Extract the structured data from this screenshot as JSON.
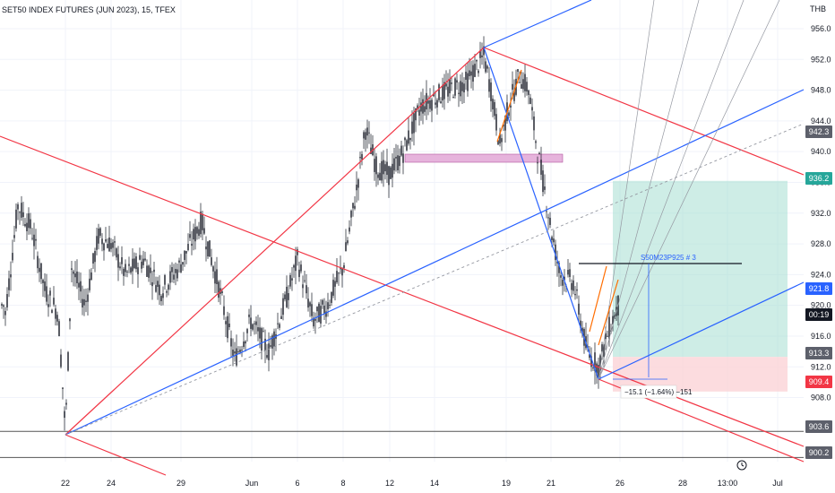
{
  "window": {
    "title": "SET50 INDEX FUTURES (JUN 2023), 15, TFEX",
    "currency": "THB",
    "price_label": "S50M23P925 # 3",
    "measure_label": "−15.1 (−1.64%) −151",
    "clock_icon": "clock-icon"
  },
  "colors": {
    "red_line": "#f23645",
    "blue_line": "#2962ff",
    "gray_line": "#9598a1",
    "orange_line": "#ff6d00",
    "candle": "#131722",
    "target_zone": "#a6dfd2",
    "stop_zone": "#fbd3d7",
    "highlight_box": "#e6b3dc",
    "level_line": "#555555",
    "axis_bg": "#ffffff",
    "tag_gray": "#5d606b",
    "tag_red": "#f23645",
    "tag_black": "#131722",
    "tag_teal": "#26a69a"
  },
  "chart_data": {
    "type": "line",
    "x_labels": [
      "22",
      "24",
      "29",
      "Jun",
      "6",
      "8",
      "12",
      "14",
      "19",
      "21",
      "26",
      "28",
      "13:00",
      "Jul"
    ],
    "y_ticks": [
      908.0,
      912.0,
      916.0,
      920.0,
      924.0,
      928.0,
      932.0,
      936.0,
      940.0,
      944.0,
      948.0,
      952.0,
      956.0
    ],
    "ylim": [
      899.0,
      958.5
    ],
    "price_tags": [
      {
        "value": "942.3",
        "style": "gray"
      },
      {
        "value": "936.2",
        "style": "teal"
      },
      {
        "value": "921.8",
        "style": "blue"
      },
      {
        "value": "00:19",
        "style": "black"
      },
      {
        "value": "913.3",
        "style": "gray"
      },
      {
        "value": "909.4",
        "style": "red"
      },
      {
        "value": "903.6",
        "style": "gray"
      },
      {
        "value": "900.2",
        "style": "gray"
      }
    ],
    "horizontal_levels": [
      903.6,
      900.2
    ],
    "price_path_anchors": [
      {
        "x": "22",
        "y": 903.6
      },
      {
        "x": "24",
        "y": 930.0
      },
      {
        "x": "29",
        "y": 926.0
      },
      {
        "x": "Jun",
        "y": 915.0
      },
      {
        "x": "6",
        "y": 925.0
      },
      {
        "x": "8",
        "y": 940.0
      },
      {
        "x": "12",
        "y": 938.0
      },
      {
        "x": "14",
        "y": 947.0
      },
      {
        "x": "19",
        "y": 944.0
      },
      {
        "x": "21",
        "y": 926.0
      },
      {
        "x": "26",
        "y": 919.0
      }
    ],
    "trend_channels": {
      "red_high": 952.4,
      "low": 909.6,
      "target": 936.2,
      "entry": 925.0,
      "stop": 913.3
    }
  }
}
